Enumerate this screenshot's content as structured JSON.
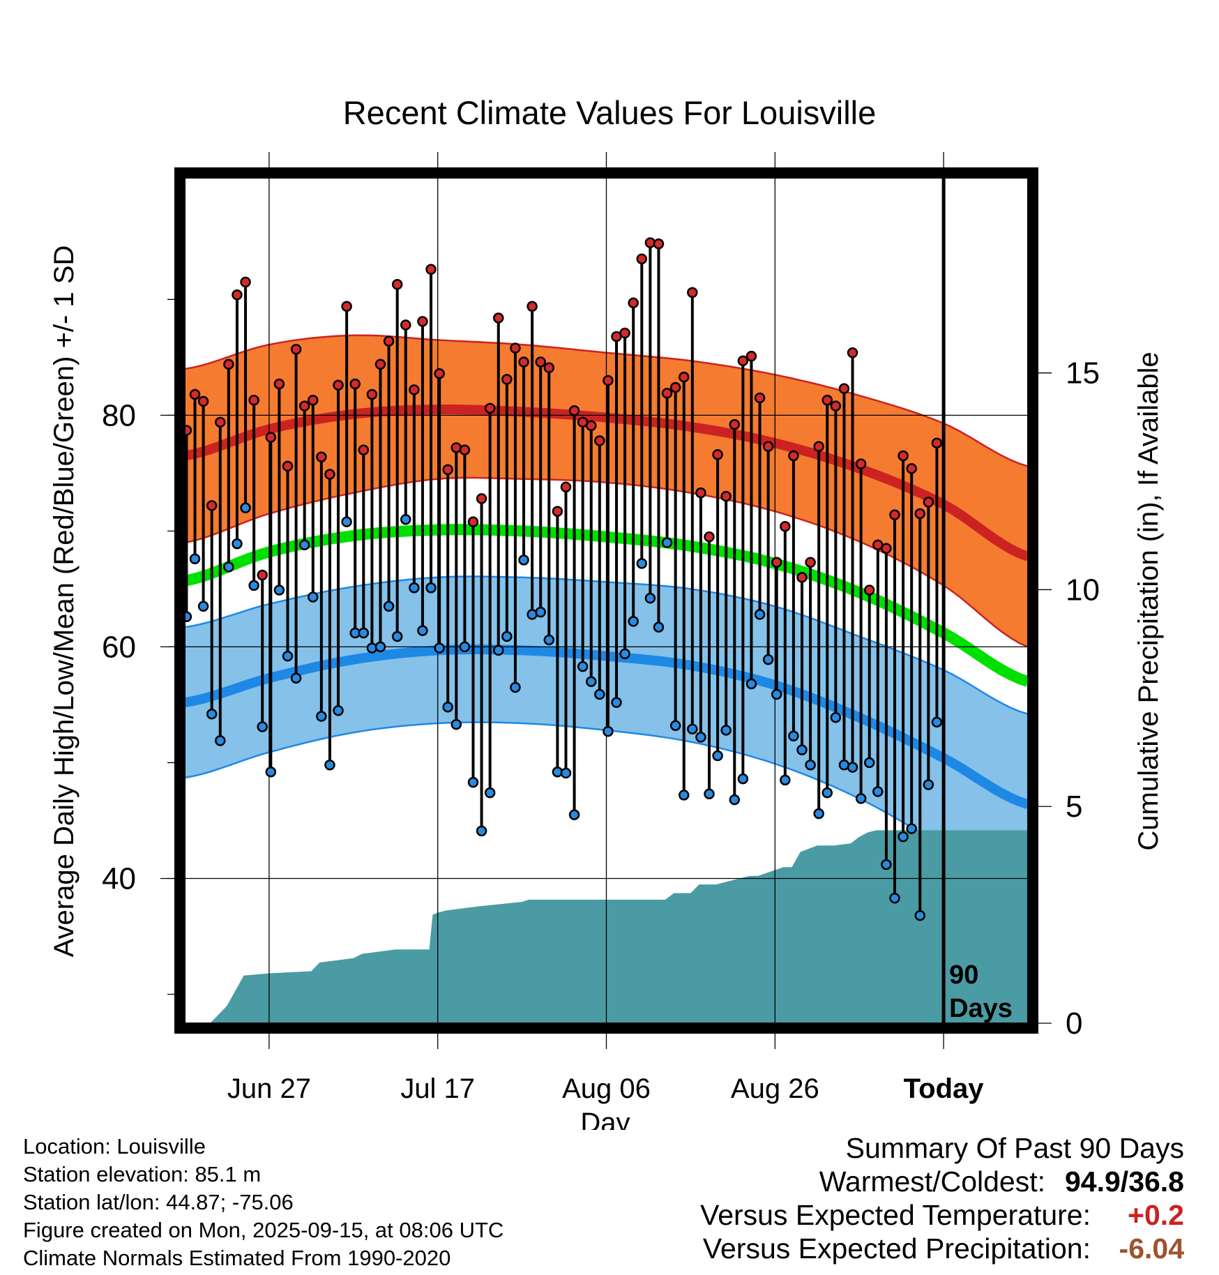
{
  "chart_data": {
    "type": "line",
    "title": "Recent Climate Values For Louisville",
    "xlabel": "Day",
    "ylabel": "Average Daily High/Low/Mean (Red/Blue/Green) +/- 1 SD",
    "y2label": "Cumulative Precipitation (in), If Available",
    "xlim": [
      0,
      100
    ],
    "ylim": [
      27.5,
      100.5
    ],
    "y2lim": [
      0,
      19.5
    ],
    "x_ticks": [
      {
        "x": 10,
        "label": "Jun 27"
      },
      {
        "x": 30,
        "label": "Jul 17"
      },
      {
        "x": 50,
        "label": "Aug 06"
      },
      {
        "x": 70,
        "label": "Aug 26"
      },
      {
        "x": 90,
        "label": "Today"
      }
    ],
    "y_ticks": [
      40,
      60,
      80
    ],
    "y2_ticks": [
      0,
      5,
      10,
      15
    ],
    "grid": true,
    "today_x": 90,
    "today_label": [
      "90",
      "Days"
    ],
    "normals_x": [
      0,
      10,
      20,
      30,
      40,
      50,
      60,
      70,
      80,
      90,
      100
    ],
    "normal_high": [
      76.5,
      78.8,
      80.1,
      80.5,
      80.3,
      79.8,
      79.0,
      77.6,
      75.4,
      72.3,
      67.8
    ],
    "normal_high_sd": [
      7.5,
      7.3,
      6.8,
      6.0,
      5.8,
      5.6,
      5.7,
      5.9,
      6.3,
      7.0,
      7.8
    ],
    "normal_low": [
      55.2,
      57.3,
      58.9,
      59.7,
      59.7,
      59.2,
      58.4,
      56.7,
      53.9,
      50.4,
      46.4
    ],
    "normal_low_sd": [
      6.5,
      6.4,
      6.3,
      6.3,
      6.3,
      6.4,
      6.6,
      6.8,
      7.0,
      7.6,
      7.8
    ],
    "normal_mean": [
      65.7,
      68.2,
      69.6,
      70.1,
      70.0,
      69.5,
      68.7,
      67.2,
      64.7,
      61.2,
      57.0
    ],
    "series": [
      {
        "name": "High",
        "values": [
          78.7,
          81.8,
          81.2,
          72.2,
          79.4,
          84.4,
          90.4,
          91.5,
          81.3,
          66.2,
          78.1,
          82.7,
          75.6,
          85.7,
          80.8,
          81.3,
          76.4,
          74.9,
          82.6,
          89.4,
          82.7,
          77.0,
          81.8,
          84.4,
          86.4,
          91.3,
          87.8,
          82.2,
          88.1,
          92.6,
          83.6,
          75.3,
          77.2,
          77.0,
          70.8,
          72.8,
          80.6,
          88.4,
          83.1,
          85.8,
          84.6,
          89.4,
          84.6,
          84.1,
          71.7,
          73.8,
          80.4,
          79.4,
          79.1,
          77.8,
          83.0,
          86.8,
          87.1,
          89.7,
          93.5,
          94.9,
          94.8,
          81.9,
          82.4,
          83.3,
          90.6,
          73.3,
          69.5,
          76.6,
          73.0,
          79.2,
          84.7,
          85.1,
          81.5,
          77.3,
          67.3,
          70.4,
          76.5,
          66.0,
          67.3,
          77.3,
          81.3,
          80.8,
          82.3,
          85.4,
          75.8,
          64.9,
          68.8,
          68.5,
          71.4,
          76.5,
          75.4,
          71.5,
          72.5,
          77.6
        ]
      },
      {
        "name": "Low",
        "values": [
          62.6,
          67.6,
          63.5,
          54.2,
          51.9,
          66.9,
          68.9,
          72.0,
          65.3,
          53.1,
          49.2,
          64.9,
          59.2,
          57.3,
          68.8,
          64.3,
          54.0,
          49.8,
          54.5,
          70.8,
          61.2,
          61.2,
          59.9,
          60.0,
          63.5,
          60.9,
          71.0,
          65.1,
          61.4,
          65.1,
          59.9,
          54.8,
          53.3,
          60.0,
          48.3,
          44.1,
          47.4,
          59.7,
          60.9,
          56.5,
          67.5,
          62.8,
          63.0,
          60.6,
          49.2,
          49.1,
          45.5,
          58.3,
          57.0,
          55.9,
          52.7,
          55.2,
          59.4,
          62.2,
          67.2,
          64.2,
          61.7,
          69.0,
          53.2,
          47.2,
          52.9,
          52.2,
          47.3,
          50.6,
          52.8,
          46.8,
          48.6,
          56.8,
          62.8,
          58.9,
          55.9,
          48.5,
          52.3,
          51.1,
          49.8,
          45.6,
          47.4,
          53.9,
          49.8,
          49.6,
          46.9,
          50.0,
          47.5,
          41.2,
          38.3,
          43.6,
          44.3,
          36.8,
          48.1,
          53.5
        ]
      },
      {
        "name": "Cumulative Precipitation",
        "x": [
          0,
          3,
          5,
          7,
          10,
          15,
          16,
          20,
          21,
          25,
          26,
          29,
          29.4,
          30,
          31,
          33,
          35,
          40,
          40.8,
          45,
          52,
          57,
          58,
          60,
          61,
          63,
          67,
          68,
          71,
          72,
          73,
          75,
          77,
          79,
          80,
          81,
          82,
          85,
          88,
          90,
          100
        ],
        "values": [
          0,
          0,
          0.4,
          1.1,
          1.15,
          1.2,
          1.4,
          1.5,
          1.6,
          1.7,
          1.7,
          1.7,
          2.5,
          2.55,
          2.6,
          2.65,
          2.7,
          2.8,
          2.85,
          2.85,
          2.85,
          2.85,
          3.0,
          3.0,
          3.2,
          3.2,
          3.4,
          3.4,
          3.6,
          3.6,
          3.95,
          4.1,
          4.1,
          4.15,
          4.3,
          4.4,
          4.45,
          4.45,
          4.45,
          4.45,
          4.45
        ]
      }
    ]
  },
  "station_info": [
    "Location: Louisville",
    "Station elevation: 85.1 m",
    "Station lat/lon: 44.87; -75.06",
    "Figure created on Mon, 2025-09-15, at 08:06 UTC",
    "Climate Normals Estimated From 1990-2020"
  ],
  "summary": {
    "heading": "Summary Of Past 90 Days",
    "warmest_coldest_label": "Warmest/Coldest:",
    "warmest_coldest_value": "94.9/36.8",
    "temp_label": "Versus Expected Temperature:",
    "temp_value": "+0.2",
    "temp_color": "#cc2222",
    "precip_label": "Versus Expected Precipitation:",
    "precip_value": "-6.04",
    "precip_color": "#a0522d"
  },
  "colors": {
    "high_band": "#f47b30",
    "high_line": "#cc2222",
    "low_band": "#85c1e9",
    "low_line": "#1e88e5",
    "mean_line": "#00e000",
    "precip_fill": "#4a9ba4",
    "high_dot": "#d42a2a",
    "low_dot": "#2a8ae0"
  }
}
